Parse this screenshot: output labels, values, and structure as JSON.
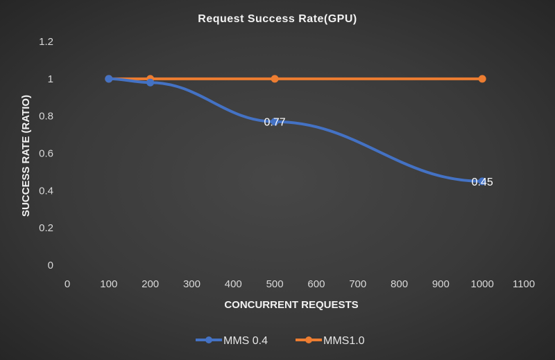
{
  "chart_data": {
    "type": "line",
    "title": "Request Success Rate(GPU)",
    "xlabel": "CONCURRENT REQUESTS",
    "ylabel": "SUCCESS  RATE (RATIO)",
    "xlim": [
      0,
      1100
    ],
    "ylim": [
      0,
      1.2
    ],
    "xticks": [
      0,
      100,
      200,
      300,
      400,
      500,
      600,
      700,
      800,
      900,
      1000,
      1100
    ],
    "yticks": [
      0,
      0.2,
      0.4,
      0.6,
      0.8,
      1,
      1.2
    ],
    "grid": false,
    "legend_position": "bottom",
    "series": [
      {
        "name": "MMS 0.4",
        "color": "#4472c4",
        "x": [
          100,
          200,
          500,
          1000
        ],
        "y": [
          1,
          0.98,
          0.77,
          0.45
        ],
        "data_labels": [
          null,
          null,
          "0.77",
          "0.45"
        ]
      },
      {
        "name": "MMS1.0",
        "color": "#ed7d31",
        "x": [
          100,
          200,
          500,
          1000
        ],
        "y": [
          1,
          1,
          1,
          1
        ],
        "data_labels": [
          null,
          null,
          null,
          null
        ]
      }
    ]
  }
}
